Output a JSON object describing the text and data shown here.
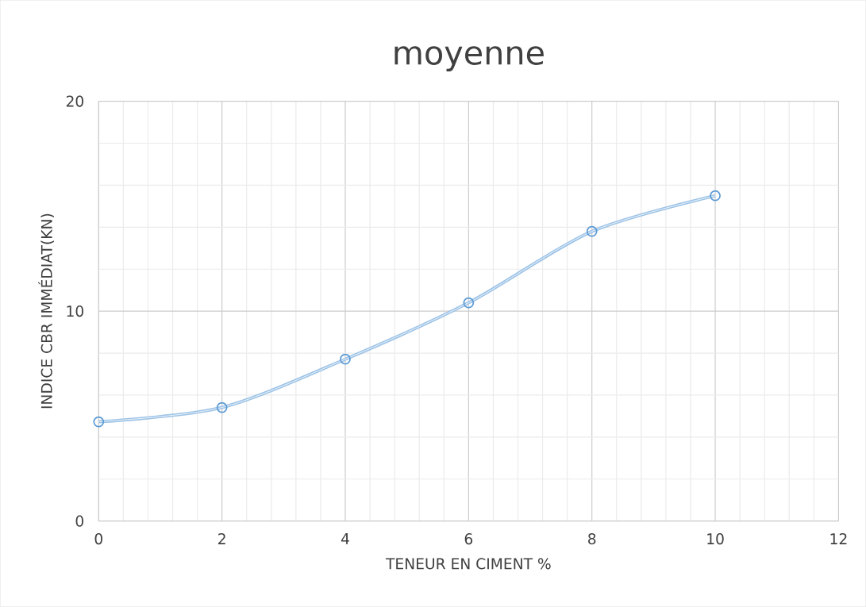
{
  "chart_data": {
    "type": "line",
    "title": "moyenne",
    "xlabel": "TENEUR EN CIMENT %",
    "ylabel": "INDICE CBR IMMÉDIAT(KN)",
    "x": [
      0,
      2,
      4,
      6,
      8,
      10
    ],
    "series": [
      {
        "color": "#5b9bd5",
        "values": [
          4.73,
          5.41,
          7.71,
          10.4,
          13.8,
          15.5
        ]
      }
    ],
    "xlim": [
      0,
      12
    ],
    "xticks": [
      0,
      2,
      4,
      6,
      8,
      10,
      12
    ],
    "ylim": [
      0,
      20
    ],
    "yticks": [
      0,
      10,
      20
    ],
    "grid": true,
    "marker": "circle",
    "line_style": "solid"
  }
}
